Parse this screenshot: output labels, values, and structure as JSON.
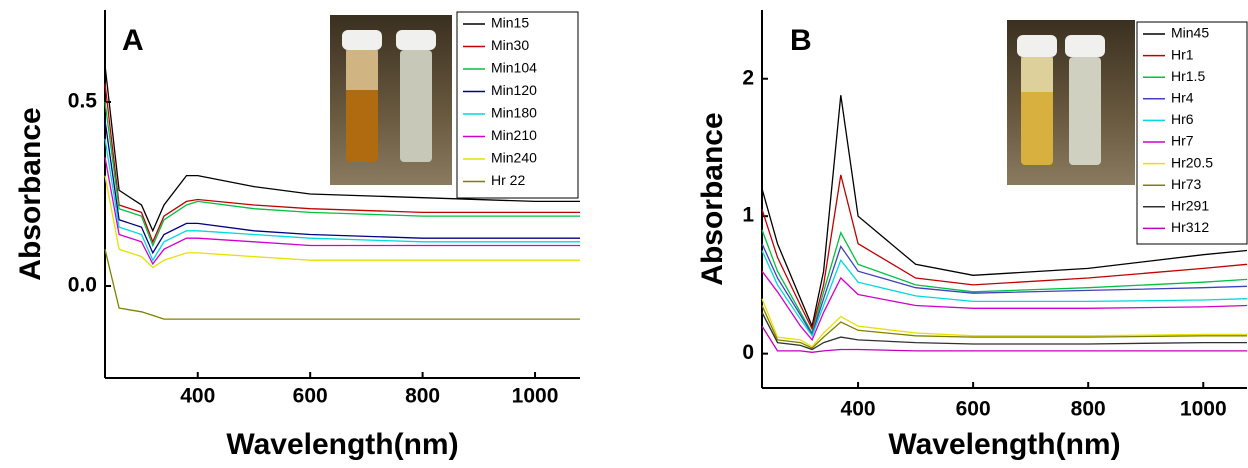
{
  "chart_data": [
    {
      "type": "line",
      "panel_label": "A",
      "xlabel": "Wavelength(nm)",
      "ylabel": "Absorbance",
      "xlim": [
        235,
        1080
      ],
      "ylim": [
        -0.25,
        0.75
      ],
      "xticks": [
        400,
        600,
        800,
        1000
      ],
      "yticks": [
        {
          "value": 0,
          "label": "0.0"
        },
        0.5
      ],
      "x": [
        235,
        260,
        300,
        320,
        340,
        380,
        400,
        500,
        600,
        800,
        1000,
        1080
      ],
      "series": [
        {
          "name": "Min15",
          "color": "#000000",
          "values": [
            0.6,
            0.26,
            0.22,
            0.15,
            0.22,
            0.3,
            0.3,
            0.27,
            0.25,
            0.24,
            0.23,
            0.23
          ]
        },
        {
          "name": "Min30",
          "color": "#c00000",
          "values": [
            0.55,
            0.22,
            0.2,
            0.12,
            0.19,
            0.23,
            0.235,
            0.22,
            0.21,
            0.2,
            0.2,
            0.2
          ]
        },
        {
          "name": "Min104",
          "color": "#00c040",
          "values": [
            0.5,
            0.21,
            0.19,
            0.11,
            0.18,
            0.22,
            0.23,
            0.21,
            0.2,
            0.19,
            0.19,
            0.19
          ]
        },
        {
          "name": "Min120",
          "color": "#000080",
          "values": [
            0.45,
            0.18,
            0.16,
            0.09,
            0.14,
            0.17,
            0.17,
            0.15,
            0.14,
            0.13,
            0.13,
            0.13
          ]
        },
        {
          "name": "Min180",
          "color": "#00d8e0",
          "values": [
            0.4,
            0.16,
            0.14,
            0.07,
            0.12,
            0.15,
            0.15,
            0.14,
            0.13,
            0.12,
            0.12,
            0.12
          ]
        },
        {
          "name": "Min210",
          "color": "#d000d0",
          "values": [
            0.35,
            0.14,
            0.12,
            0.06,
            0.1,
            0.13,
            0.13,
            0.12,
            0.11,
            0.11,
            0.11,
            0.11
          ]
        },
        {
          "name": "Min240",
          "color": "#e8e000",
          "values": [
            0.3,
            0.1,
            0.08,
            0.05,
            0.07,
            0.09,
            0.09,
            0.08,
            0.07,
            0.07,
            0.07,
            0.07
          ]
        },
        {
          "name": "Hr 22",
          "color": "#808000",
          "values": [
            0.1,
            -0.06,
            -0.07,
            -0.08,
            -0.09,
            -0.09,
            -0.09,
            -0.09,
            -0.09,
            -0.09,
            -0.09,
            -0.09
          ]
        }
      ]
    },
    {
      "type": "line",
      "panel_label": "B",
      "xlabel": "Wavelength(nm)",
      "ylabel": "Absorbance",
      "xlim": [
        233,
        1076
      ],
      "ylim": [
        -0.25,
        2.5
      ],
      "xticks": [
        400,
        600,
        800,
        1000
      ],
      "yticks": [
        0,
        1,
        2
      ],
      "x": [
        233,
        260,
        300,
        320,
        340,
        370,
        400,
        500,
        600,
        800,
        1000,
        1076
      ],
      "series": [
        {
          "name": "Min45",
          "color": "#000000",
          "values": [
            1.2,
            0.8,
            0.4,
            0.2,
            0.6,
            1.88,
            1.0,
            0.65,
            0.57,
            0.62,
            0.72,
            0.75
          ]
        },
        {
          "name": "Hr1",
          "color": "#c00000",
          "values": [
            1.05,
            0.7,
            0.35,
            0.18,
            0.5,
            1.3,
            0.8,
            0.55,
            0.5,
            0.55,
            0.62,
            0.65
          ]
        },
        {
          "name": "Hr1.5",
          "color": "#00c040",
          "values": [
            0.9,
            0.6,
            0.3,
            0.15,
            0.45,
            0.88,
            0.65,
            0.5,
            0.45,
            0.48,
            0.52,
            0.54
          ]
        },
        {
          "name": "Hr4",
          "color": "#4040c0",
          "values": [
            0.8,
            0.55,
            0.28,
            0.14,
            0.4,
            0.78,
            0.6,
            0.48,
            0.44,
            0.46,
            0.48,
            0.49
          ]
        },
        {
          "name": "Hr6",
          "color": "#00d8e0",
          "values": [
            0.75,
            0.5,
            0.25,
            0.13,
            0.35,
            0.68,
            0.52,
            0.42,
            0.38,
            0.38,
            0.39,
            0.4
          ]
        },
        {
          "name": "Hr7",
          "color": "#d000d0",
          "values": [
            0.6,
            0.45,
            0.2,
            0.1,
            0.3,
            0.55,
            0.43,
            0.35,
            0.33,
            0.33,
            0.34,
            0.35
          ]
        },
        {
          "name": "Hr20.5",
          "color": "#e8e000",
          "values": [
            0.4,
            0.12,
            0.1,
            0.05,
            0.15,
            0.27,
            0.2,
            0.15,
            0.13,
            0.13,
            0.14,
            0.14
          ]
        },
        {
          "name": "Hr73",
          "color": "#808000",
          "values": [
            0.35,
            0.1,
            0.08,
            0.04,
            0.12,
            0.23,
            0.17,
            0.13,
            0.12,
            0.12,
            0.13,
            0.13
          ]
        },
        {
          "name": "Hr291",
          "color": "#303030",
          "values": [
            0.3,
            0.08,
            0.06,
            0.03,
            0.08,
            0.12,
            0.1,
            0.08,
            0.07,
            0.07,
            0.08,
            0.08
          ]
        },
        {
          "name": "Hr312",
          "color": "#c000c0",
          "values": [
            0.2,
            0.02,
            0.02,
            0.01,
            0.02,
            0.03,
            0.03,
            0.02,
            0.02,
            0.02,
            0.02,
            0.02
          ]
        }
      ]
    }
  ]
}
